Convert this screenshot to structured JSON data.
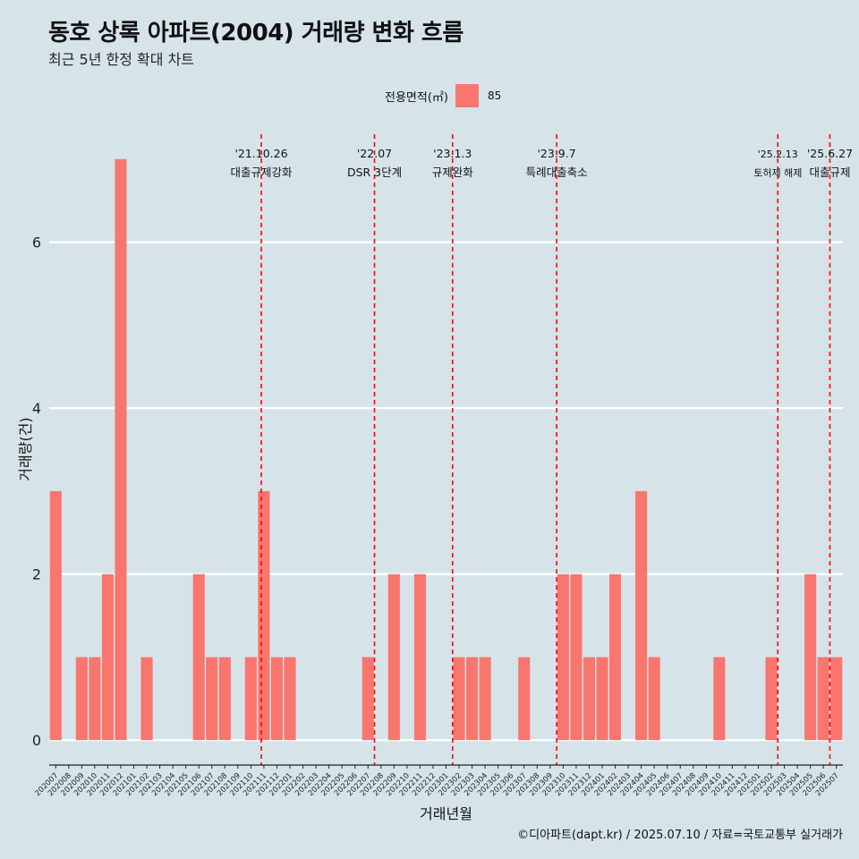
{
  "header": {
    "title": "동호 상록 아파트(2004) 거래량 변화 흐름",
    "subtitle": "최근 5년 한정 확대 차트"
  },
  "legend": {
    "title": "전용면적(㎡)",
    "items": [
      {
        "label": "85",
        "color": "#f8766d"
      }
    ]
  },
  "caption": "©디아파트(dapt.kr) / 2025.07.10 / 자료=국토교통부 실거래가",
  "chart_data": {
    "type": "bar",
    "xlabel": "거래년월",
    "ylabel": "거래량(건)",
    "ylim": [
      -0.3,
      7.3
    ],
    "yticks": [
      0,
      2,
      4,
      6
    ],
    "grid": true,
    "legend_position": "top",
    "categories": [
      "202007",
      "202008",
      "202009",
      "202010",
      "202011",
      "202012",
      "202101",
      "202102",
      "202103",
      "202104",
      "202105",
      "202106",
      "202107",
      "202108",
      "202109",
      "202110",
      "202111",
      "202112",
      "202201",
      "202202",
      "202203",
      "202204",
      "202205",
      "202206",
      "202207",
      "202208",
      "202209",
      "202210",
      "202211",
      "202212",
      "202301",
      "202302",
      "202303",
      "202304",
      "202305",
      "202306",
      "202307",
      "202308",
      "202309",
      "202310",
      "202311",
      "202312",
      "202401",
      "202402",
      "202403",
      "202404",
      "202405",
      "202406",
      "202407",
      "202408",
      "202409",
      "202410",
      "202411",
      "202412",
      "202501",
      "202502",
      "202503",
      "202504",
      "202505",
      "202506",
      "202507"
    ],
    "series": [
      {
        "name": "85",
        "values": [
          3,
          0,
          1,
          1,
          2,
          7,
          0,
          1,
          0,
          0,
          0,
          2,
          1,
          1,
          0,
          1,
          3,
          1,
          1,
          0,
          0,
          0,
          0,
          0,
          1,
          0,
          2,
          0,
          2,
          0,
          0,
          1,
          1,
          1,
          0,
          0,
          1,
          0,
          0,
          2,
          2,
          1,
          1,
          2,
          0,
          3,
          1,
          0,
          0,
          0,
          0,
          1,
          0,
          0,
          0,
          1,
          0,
          0,
          2,
          1,
          1
        ]
      }
    ],
    "events": [
      {
        "date": "'21.10.26",
        "label": "대출규제강화",
        "x_index": 15.8,
        "color": "#ff0000"
      },
      {
        "date": "'22.07",
        "label": "DSR 3단계",
        "x_index": 24.5,
        "color": "#ff0000"
      },
      {
        "date": "'23.1.3",
        "label": "규제완화",
        "x_index": 30.5,
        "color": "#ff0000"
      },
      {
        "date": "'23.9.7",
        "label": "특례대출축소",
        "x_index": 38.5,
        "color": "#ff0000"
      },
      {
        "date": "'25.2.13",
        "label": "토허제 해제",
        "x_index": 55.5,
        "color": "#ff0000"
      },
      {
        "date": "'25.6.27",
        "label": "대출규제",
        "x_index": 59.5,
        "color": "#ff0000"
      }
    ]
  }
}
